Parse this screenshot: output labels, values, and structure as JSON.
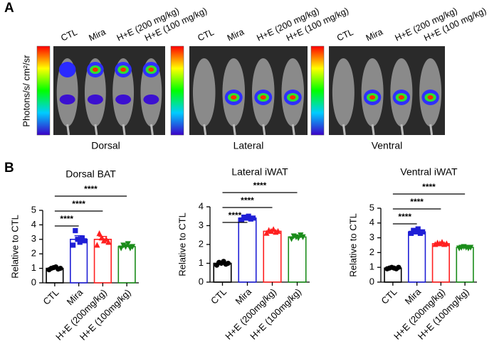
{
  "panel_a": {
    "label": "A",
    "colorbar_label": "Photons/s/ cm²/sr",
    "views": [
      {
        "name": "Dorsal",
        "groups": [
          "CTL",
          "Mira",
          "H+E (200 mg/kg)",
          "H+E (100 mg/kg)"
        ]
      },
      {
        "name": "Lateral",
        "groups": [
          "CTL",
          "Mira",
          "H+E (200 mg/kg)",
          "H+E (100 mg/kg)"
        ]
      },
      {
        "name": "Ventral",
        "groups": [
          "CTL",
          "Mira",
          "H+E (200 mg/kg)",
          "H+E (100 mg/kg)"
        ]
      }
    ]
  },
  "panel_b_label": "B",
  "chart_data": [
    {
      "type": "bar",
      "title": "Dorsal BAT",
      "y_label": "Relative to CTL",
      "categories": [
        "CTL",
        "Mira",
        "H+E (200mg/kg)",
        "H+E (100mg/kg)"
      ],
      "colors": [
        "#000000",
        "#1f1fd6",
        "#ff2020",
        "#1a8c1a"
      ],
      "markers": [
        "circle",
        "square",
        "triangle",
        "triangle-down"
      ],
      "values": [
        1.0,
        3.0,
        3.0,
        2.5
      ],
      "errors": [
        0.07,
        0.25,
        0.2,
        0.1
      ],
      "points": [
        [
          0.9,
          1.0,
          1.05,
          1.1,
          0.95,
          1.0
        ],
        [
          2.6,
          3.6,
          3.0,
          2.8,
          3.1,
          2.9
        ],
        [
          2.6,
          3.4,
          3.1,
          2.9,
          3.0,
          2.8
        ],
        [
          2.4,
          2.6,
          2.5,
          2.7,
          2.4,
          2.5
        ]
      ],
      "comparisons": [
        {
          "pair": [
            "CTL",
            "Mira"
          ],
          "label": "****"
        },
        {
          "pair": [
            "CTL",
            "H+E (200mg/kg)"
          ],
          "label": "****"
        },
        {
          "pair": [
            "CTL",
            "H+E (100mg/kg)"
          ],
          "label": "****"
        }
      ],
      "ylim": [
        0,
        5
      ],
      "yticks": [
        0,
        1,
        2,
        3,
        4,
        5
      ]
    },
    {
      "type": "bar",
      "title": "Lateral iWAT",
      "y_label": "Relative to CTL",
      "categories": [
        "CTL",
        "Mira",
        "H+E (200mg/kg)",
        "H+E (100mg/kg)"
      ],
      "colors": [
        "#000000",
        "#1f1fd6",
        "#ff2020",
        "#1a8c1a"
      ],
      "markers": [
        "circle",
        "square",
        "triangle",
        "triangle-down"
      ],
      "values": [
        1.0,
        3.4,
        2.7,
        2.4
      ],
      "errors": [
        0.06,
        0.05,
        0.05,
        0.05
      ],
      "points": [
        [
          0.9,
          1.05,
          1.0,
          1.1,
          0.95,
          1.0
        ],
        [
          3.3,
          3.45,
          3.4,
          3.5,
          3.35,
          3.4
        ],
        [
          2.6,
          2.75,
          2.7,
          2.8,
          2.65,
          2.7
        ],
        [
          2.3,
          2.45,
          2.4,
          2.35,
          2.5,
          2.4
        ]
      ],
      "comparisons": [
        {
          "pair": [
            "CTL",
            "Mira"
          ],
          "label": "****"
        },
        {
          "pair": [
            "CTL",
            "H+E (200mg/kg)"
          ],
          "label": "****"
        },
        {
          "pair": [
            "CTL",
            "H+E (100mg/kg)"
          ],
          "label": "****"
        }
      ],
      "ylim": [
        0,
        4
      ],
      "yticks": [
        0,
        1,
        2,
        3,
        4
      ]
    },
    {
      "type": "bar",
      "title": "Ventral iWAT",
      "y_label": "Relative to CTL",
      "categories": [
        "CTL",
        "Mira",
        "H+E (200mg/kg)",
        "H+E (100mg/kg)"
      ],
      "colors": [
        "#000000",
        "#1f1fd6",
        "#ff2020",
        "#1a8c1a"
      ],
      "markers": [
        "circle",
        "square",
        "triangle",
        "triangle-down"
      ],
      "values": [
        0.95,
        3.4,
        2.6,
        2.35
      ],
      "errors": [
        0.03,
        0.07,
        0.04,
        0.03
      ],
      "points": [
        [
          0.9,
          0.95,
          1.0,
          0.95,
          0.9,
          1.0
        ],
        [
          3.3,
          3.5,
          3.4,
          3.6,
          3.3,
          3.4
        ],
        [
          2.55,
          2.65,
          2.6,
          2.7,
          2.55,
          2.6
        ],
        [
          2.3,
          2.35,
          2.4,
          2.35,
          2.3,
          2.35
        ]
      ],
      "comparisons": [
        {
          "pair": [
            "CTL",
            "Mira"
          ],
          "label": "****"
        },
        {
          "pair": [
            "CTL",
            "H+E (200mg/kg)"
          ],
          "label": "****"
        },
        {
          "pair": [
            "CTL",
            "H+E (100mg/kg)"
          ],
          "label": "****"
        }
      ],
      "ylim": [
        0,
        5
      ],
      "yticks": [
        0,
        1,
        2,
        3,
        4,
        5
      ]
    }
  ]
}
